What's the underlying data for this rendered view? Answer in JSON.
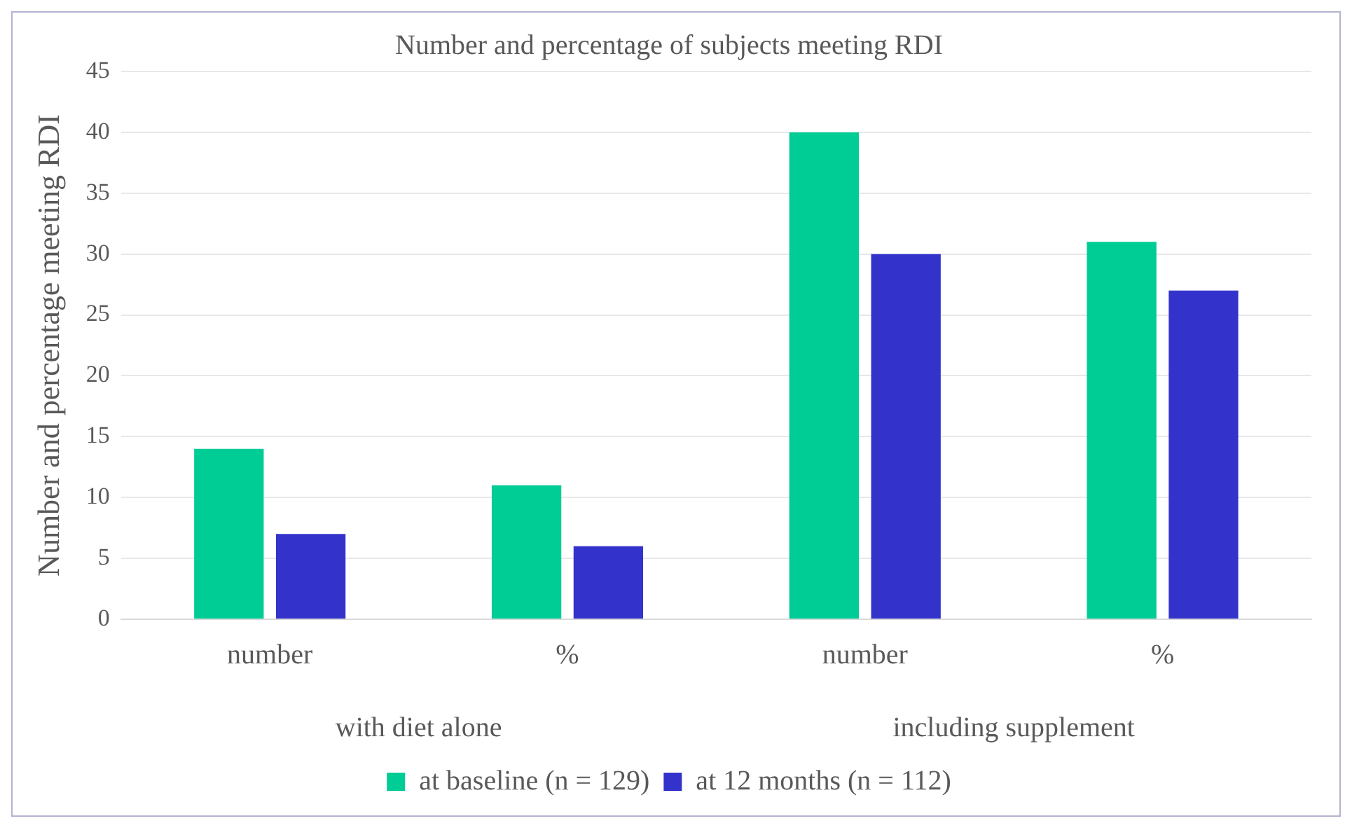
{
  "chart_data": {
    "type": "bar",
    "title": "Number and percentage of subjects meeting RDI",
    "ylabel": "Number and percentage meeting RDI",
    "categories": [
      "number",
      "%",
      "number",
      "%"
    ],
    "series": [
      {
        "name": "at baseline (n = 129)",
        "color": "#00cc96",
        "values": [
          14,
          11,
          40,
          31
        ]
      },
      {
        "name": "at 12 months (n = 112)",
        "color": "#3333cc",
        "values": [
          7,
          6,
          30,
          27
        ]
      }
    ],
    "annotations": [
      "with diet alone",
      "including supplement"
    ],
    "ylim": [
      0,
      45
    ],
    "yticks": [
      0,
      5,
      10,
      15,
      20,
      25,
      30,
      35,
      40,
      45
    ],
    "grid": "y",
    "legend": "bottom"
  }
}
